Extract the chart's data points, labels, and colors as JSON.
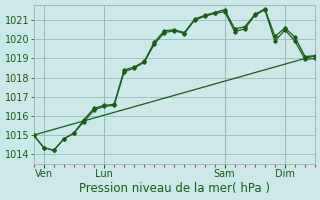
{
  "title": "Pression niveau de la mer( hPa )",
  "ylim": [
    1013.5,
    1021.8
  ],
  "yticks": [
    1014,
    1015,
    1016,
    1017,
    1018,
    1019,
    1020,
    1021
  ],
  "bg_color": "#cce8e8",
  "grid_color": "#99bbbb",
  "line_color": "#1a5c1a",
  "xlim": [
    0,
    28
  ],
  "xtick_labels": [
    "Ven",
    "Lun",
    "Sam",
    "Dim"
  ],
  "xtick_positions": [
    1,
    7,
    19,
    25
  ],
  "vline_positions": [
    1,
    7,
    19,
    25
  ],
  "series1_x": [
    0,
    1,
    2,
    3,
    4,
    5,
    6,
    7,
    8,
    9,
    10,
    11,
    12,
    13,
    14,
    15,
    16,
    17,
    18,
    19,
    20,
    21,
    22,
    23,
    24,
    25,
    26,
    27,
    28
  ],
  "series1_y": [
    1015.0,
    1014.35,
    1014.2,
    1014.8,
    1015.1,
    1015.8,
    1016.4,
    1016.55,
    1016.6,
    1018.4,
    1018.55,
    1018.85,
    1019.85,
    1020.45,
    1020.5,
    1020.35,
    1021.05,
    1021.25,
    1021.4,
    1021.55,
    1020.55,
    1020.65,
    1021.3,
    1021.6,
    1020.15,
    1020.6,
    1020.1,
    1019.1,
    1019.15
  ],
  "series2_x": [
    0,
    1,
    2,
    3,
    4,
    5,
    6,
    7,
    8,
    9,
    10,
    11,
    12,
    13,
    14,
    15,
    16,
    17,
    18,
    19,
    20,
    21,
    22,
    23,
    24,
    25,
    26,
    27,
    28
  ],
  "series2_y": [
    1015.0,
    1014.35,
    1014.2,
    1014.8,
    1015.1,
    1015.7,
    1016.3,
    1016.5,
    1016.55,
    1018.3,
    1018.5,
    1018.8,
    1019.75,
    1020.35,
    1020.45,
    1020.3,
    1021.0,
    1021.2,
    1021.35,
    1021.45,
    1020.4,
    1020.55,
    1021.25,
    1021.55,
    1019.9,
    1020.5,
    1019.9,
    1018.95,
    1019.0
  ],
  "series3_x": [
    0,
    28
  ],
  "series3_y": [
    1015.0,
    1019.15
  ],
  "title_color": "#1a5c1a",
  "title_fontsize": 8.5,
  "tick_fontsize": 7,
  "minor_tick_color": "#cc3333"
}
